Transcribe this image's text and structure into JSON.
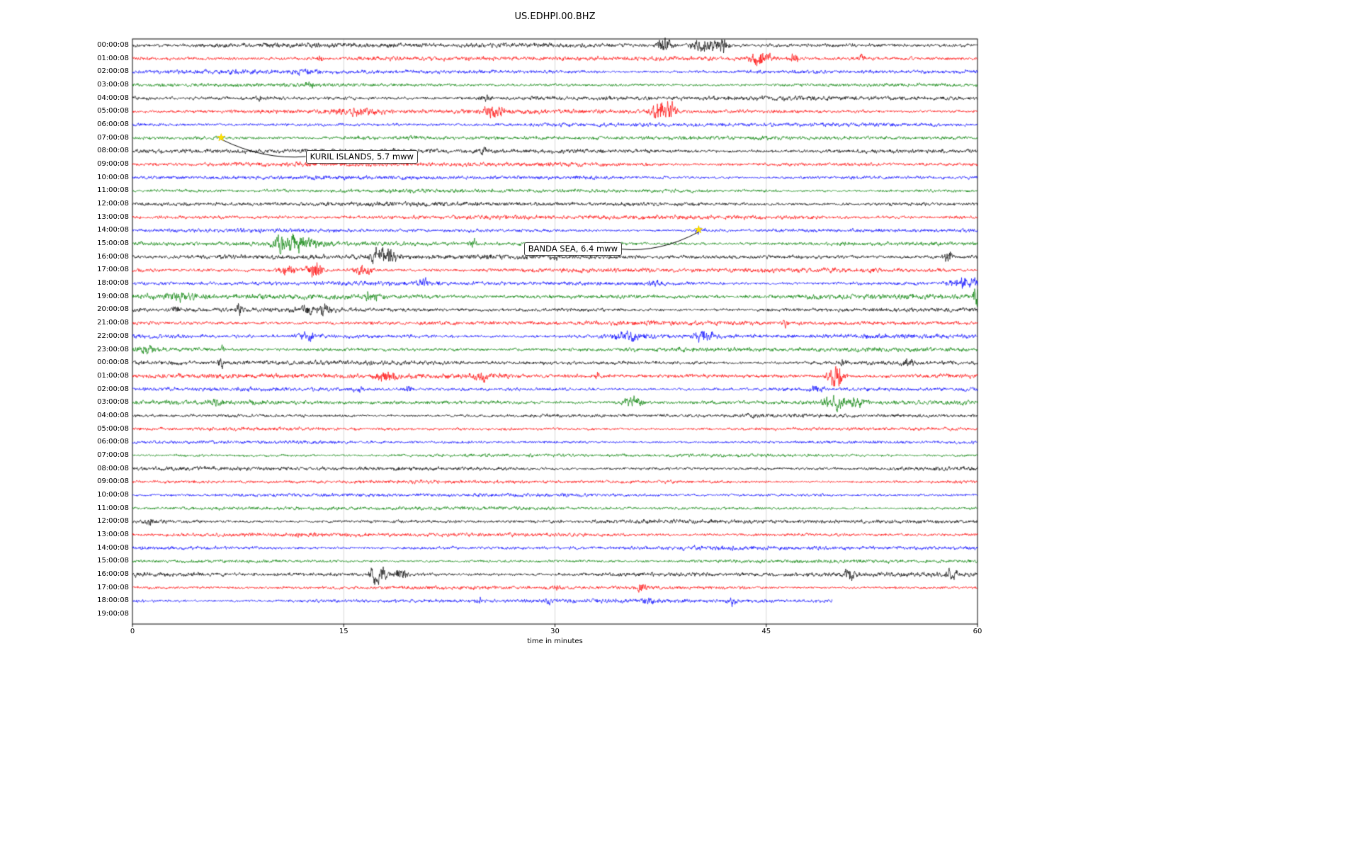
{
  "chart_data": {
    "type": "line",
    "title": "US.EDHPI.00.BHZ",
    "xlabel": "time in minutes",
    "xlim": [
      0,
      60
    ],
    "x_ticks": [
      0,
      15,
      30,
      45,
      60
    ],
    "grid": "on",
    "palette": {
      "k": "#000000",
      "r": "#ff0000",
      "b": "#0000ff",
      "g": "#008000",
      "grid": "#cccccc",
      "axis": "#000000",
      "star": "#ffe000"
    },
    "annotations": [
      {
        "label": "KURIL ISLANDS, 5.7 mww",
        "star": {
          "row": 7,
          "minute": 6.3
        },
        "box": {
          "row": 7.9,
          "minute": 12.3
        }
      },
      {
        "label": "BANDA SEA, 6.4 mww",
        "star": {
          "row": 14,
          "minute": 40.2
        },
        "box": {
          "row": 14.9,
          "minute": 27.8
        }
      }
    ],
    "rows": [
      {
        "label": "00:00:08",
        "c": "k",
        "amp": 2.2,
        "seed": 101,
        "bursts": [
          [
            37.8,
            0.5,
            3.5
          ],
          [
            40.6,
            0.9,
            3.2
          ],
          [
            41.9,
            0.35,
            3.0
          ]
        ]
      },
      {
        "label": "01:00:08",
        "c": "r",
        "amp": 2.0,
        "seed": 102,
        "bursts": [
          [
            13.3,
            0.15,
            1.8
          ],
          [
            44.6,
            0.7,
            4.0
          ],
          [
            46.9,
            0.4,
            2.2
          ],
          [
            51.8,
            0.2,
            1.5
          ]
        ]
      },
      {
        "label": "02:00:08",
        "c": "b",
        "amp": 1.9,
        "seed": 103,
        "bursts": [
          [
            12.2,
            1.0,
            0.7
          ]
        ]
      },
      {
        "label": "03:00:08",
        "c": "g",
        "amp": 1.7,
        "seed": 104,
        "bursts": [
          [
            12.6,
            0.3,
            1.2
          ]
        ]
      },
      {
        "label": "04:00:08",
        "c": "k",
        "amp": 2.0,
        "seed": 105,
        "bursts": [
          [
            25.0,
            0.4,
            1.4
          ],
          [
            9.0,
            0.2,
            1.2
          ]
        ]
      },
      {
        "label": "05:00:08",
        "c": "r",
        "amp": 2.0,
        "seed": 106,
        "bursts": [
          [
            16.0,
            1.6,
            1.6
          ],
          [
            25.4,
            0.4,
            3.2
          ],
          [
            26.2,
            0.3,
            2.2
          ],
          [
            37.6,
            0.7,
            5.0
          ],
          [
            38.3,
            0.3,
            2.5
          ]
        ]
      },
      {
        "label": "06:00:08",
        "c": "b",
        "amp": 1.8,
        "seed": 107,
        "bursts": []
      },
      {
        "label": "07:00:08",
        "c": "g",
        "amp": 1.8,
        "seed": 108,
        "bursts": [
          [
            16.0,
            2.0,
            0.6
          ],
          [
            20.0,
            1.2,
            0.5
          ]
        ]
      },
      {
        "label": "08:00:08",
        "c": "k",
        "amp": 2.2,
        "seed": 109,
        "bursts": [
          [
            24.9,
            0.25,
            1.6
          ]
        ]
      },
      {
        "label": "09:00:08",
        "c": "r",
        "amp": 2.0,
        "seed": 110,
        "bursts": []
      },
      {
        "label": "10:00:08",
        "c": "b",
        "amp": 1.8,
        "seed": 111,
        "bursts": []
      },
      {
        "label": "11:00:08",
        "c": "g",
        "amp": 1.7,
        "seed": 112,
        "bursts": []
      },
      {
        "label": "12:00:08",
        "c": "k",
        "amp": 2.0,
        "seed": 113,
        "bursts": []
      },
      {
        "label": "13:00:08",
        "c": "r",
        "amp": 2.0,
        "seed": 114,
        "bursts": []
      },
      {
        "label": "14:00:08",
        "c": "b",
        "amp": 1.8,
        "seed": 115,
        "bursts": [
          [
            40.3,
            0.5,
            1.2
          ]
        ]
      },
      {
        "label": "15:00:08",
        "c": "g",
        "amp": 2.0,
        "seed": 116,
        "bursts": [
          [
            10.6,
            0.6,
            4.5
          ],
          [
            11.6,
            0.5,
            3.2
          ],
          [
            12.6,
            0.7,
            2.0
          ],
          [
            24.2,
            0.3,
            1.8
          ]
        ]
      },
      {
        "label": "16:00:08",
        "c": "k",
        "amp": 2.2,
        "seed": 117,
        "bursts": [
          [
            17.2,
            0.4,
            2.2
          ],
          [
            18.1,
            0.6,
            3.8
          ],
          [
            30.2,
            0.25,
            1.4
          ],
          [
            57.9,
            0.3,
            2.6
          ]
        ]
      },
      {
        "label": "17:00:08",
        "c": "r",
        "amp": 2.0,
        "seed": 118,
        "bursts": [
          [
            11.0,
            0.6,
            2.2
          ],
          [
            12.9,
            0.5,
            4.2
          ],
          [
            16.4,
            0.6,
            2.2
          ]
        ]
      },
      {
        "label": "18:00:08",
        "c": "b",
        "amp": 1.9,
        "seed": 119,
        "bursts": [
          [
            20.6,
            0.4,
            1.8
          ],
          [
            37.2,
            0.5,
            1.3
          ],
          [
            58.8,
            0.8,
            2.6
          ],
          [
            59.8,
            0.3,
            2.0
          ]
        ]
      },
      {
        "label": "19:00:08",
        "c": "g",
        "amp": 2.4,
        "seed": 120,
        "bursts": [
          [
            3.0,
            1.6,
            1.2
          ],
          [
            16.9,
            0.4,
            2.0
          ],
          [
            59.9,
            0.25,
            5.0
          ]
        ]
      },
      {
        "label": "20:00:08",
        "c": "k",
        "amp": 2.0,
        "seed": 121,
        "bursts": [
          [
            3.1,
            0.25,
            1.8
          ],
          [
            7.6,
            0.2,
            2.2
          ],
          [
            12.4,
            0.5,
            2.2
          ],
          [
            13.6,
            0.4,
            2.2
          ]
        ]
      },
      {
        "label": "21:00:08",
        "c": "r",
        "amp": 2.0,
        "seed": 122,
        "bursts": [
          [
            46.4,
            0.18,
            2.6
          ]
        ]
      },
      {
        "label": "22:00:08",
        "c": "b",
        "amp": 2.0,
        "seed": 123,
        "bursts": [
          [
            12.4,
            0.8,
            1.6
          ],
          [
            35.2,
            1.2,
            1.6
          ],
          [
            40.6,
            0.6,
            3.2
          ]
        ]
      },
      {
        "label": "23:00:08",
        "c": "g",
        "amp": 2.0,
        "seed": 124,
        "bursts": [
          [
            1.1,
            0.5,
            2.0
          ],
          [
            6.4,
            0.2,
            1.6
          ]
        ]
      },
      {
        "label": "00:00:08",
        "c": "k",
        "amp": 2.0,
        "seed": 125,
        "bursts": [
          [
            6.3,
            0.2,
            2.6
          ],
          [
            55.0,
            0.4,
            2.0
          ],
          [
            50.5,
            0.2,
            1.6
          ]
        ]
      },
      {
        "label": "01:00:08",
        "c": "r",
        "amp": 2.2,
        "seed": 126,
        "bursts": [
          [
            18.0,
            0.6,
            2.2
          ],
          [
            24.8,
            0.5,
            2.2
          ],
          [
            49.6,
            0.3,
            3.0
          ],
          [
            50.1,
            0.4,
            6.0
          ],
          [
            33.0,
            0.3,
            1.6
          ]
        ]
      },
      {
        "label": "02:00:08",
        "c": "b",
        "amp": 1.8,
        "seed": 127,
        "bursts": [
          [
            19.6,
            0.3,
            1.8
          ],
          [
            48.6,
            0.5,
            1.8
          ],
          [
            16.0,
            0.3,
            1.4
          ]
        ]
      },
      {
        "label": "03:00:08",
        "c": "g",
        "amp": 2.0,
        "seed": 128,
        "bursts": [
          [
            5.8,
            0.3,
            1.6
          ],
          [
            35.4,
            0.8,
            2.6
          ],
          [
            49.8,
            0.8,
            4.5
          ],
          [
            51.4,
            0.5,
            3.0
          ]
        ]
      },
      {
        "label": "04:00:08",
        "c": "k",
        "amp": 1.7,
        "seed": 129,
        "bursts": []
      },
      {
        "label": "05:00:08",
        "c": "r",
        "amp": 1.6,
        "seed": 130,
        "bursts": []
      },
      {
        "label": "06:00:08",
        "c": "b",
        "amp": 1.5,
        "seed": 131,
        "bursts": []
      },
      {
        "label": "07:00:08",
        "c": "g",
        "amp": 1.5,
        "seed": 132,
        "bursts": []
      },
      {
        "label": "08:00:08",
        "c": "k",
        "amp": 1.8,
        "seed": 133,
        "bursts": []
      },
      {
        "label": "09:00:08",
        "c": "r",
        "amp": 1.6,
        "seed": 134,
        "bursts": []
      },
      {
        "label": "10:00:08",
        "c": "b",
        "amp": 1.6,
        "seed": 135,
        "bursts": []
      },
      {
        "label": "11:00:08",
        "c": "g",
        "amp": 1.6,
        "seed": 136,
        "bursts": []
      },
      {
        "label": "12:00:08",
        "c": "k",
        "amp": 1.8,
        "seed": 137,
        "bursts": [
          [
            1.3,
            0.3,
            1.8
          ]
        ]
      },
      {
        "label": "13:00:08",
        "c": "r",
        "amp": 1.8,
        "seed": 138,
        "bursts": []
      },
      {
        "label": "14:00:08",
        "c": "b",
        "amp": 1.8,
        "seed": 139,
        "bursts": []
      },
      {
        "label": "15:00:08",
        "c": "g",
        "amp": 1.6,
        "seed": 140,
        "bursts": []
      },
      {
        "label": "16:00:08",
        "c": "k",
        "amp": 2.0,
        "seed": 141,
        "bursts": [
          [
            17.5,
            0.6,
            5.0
          ],
          [
            19.1,
            0.4,
            2.4
          ],
          [
            50.9,
            0.4,
            2.4
          ],
          [
            58.1,
            0.4,
            2.8
          ]
        ]
      },
      {
        "label": "17:00:08",
        "c": "r",
        "amp": 1.6,
        "seed": 142,
        "bursts": [
          [
            30.1,
            0.2,
            1.6
          ],
          [
            36.1,
            0.3,
            2.2
          ]
        ]
      },
      {
        "label": "18:00:08",
        "c": "b",
        "amp": 1.8,
        "seed": 143,
        "end": 49.7,
        "bursts": [
          [
            24.6,
            0.3,
            1.6
          ],
          [
            29.6,
            0.3,
            1.6
          ],
          [
            36.6,
            0.3,
            2.6
          ],
          [
            42.6,
            0.3,
            1.8
          ]
        ]
      },
      {
        "label": "19:00:08",
        "c": "g",
        "amp": 0,
        "seed": 144,
        "end": 0,
        "bursts": []
      }
    ]
  }
}
